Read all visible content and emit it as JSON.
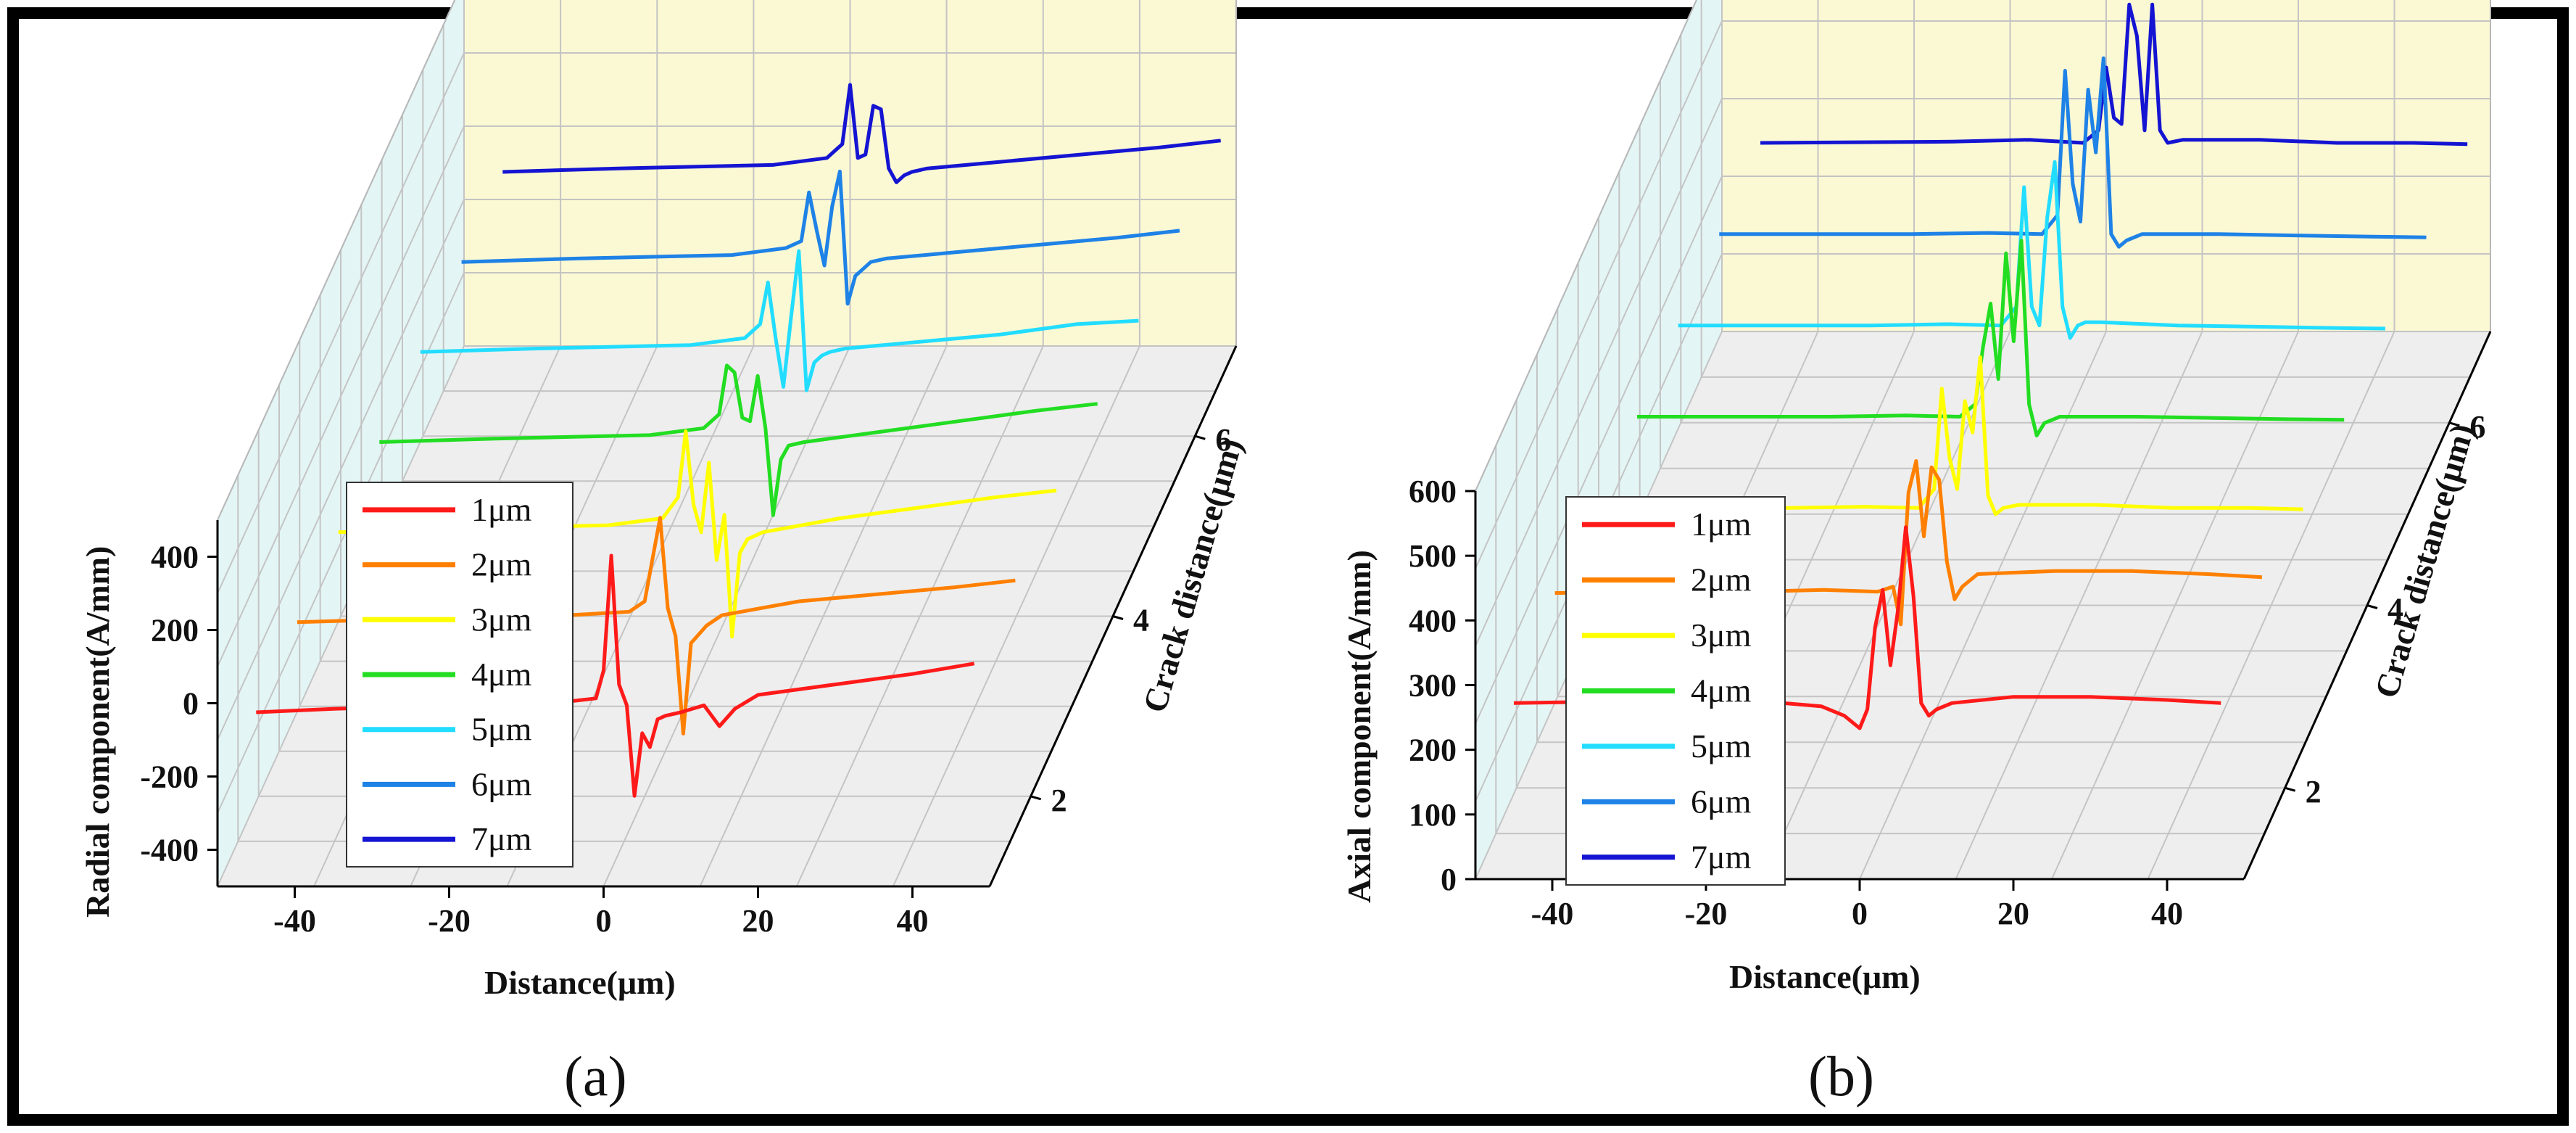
{
  "figure": {
    "captions": [
      "(a)",
      "(b)"
    ]
  },
  "chart_data": [
    {
      "type": "line",
      "panel": "(a)",
      "ylabel": "Radial component(A/mm)",
      "xlabel": "Distance(μm)",
      "zlabel": "Crack distance(μm)",
      "xlim": [
        -50,
        50
      ],
      "ylim": [
        -500,
        500
      ],
      "zlim": [
        1,
        7
      ],
      "x_ticks": [
        "-40",
        "-20",
        "0",
        "20",
        "40"
      ],
      "x_tick_values": [
        -40,
        -20,
        0,
        20,
        40
      ],
      "y_ticks": [
        "400",
        "200",
        "0",
        "-200",
        "-400"
      ],
      "y_tick_values": [
        400,
        200,
        0,
        -200,
        -400
      ],
      "z_ticks": [
        "2",
        "4",
        "6"
      ],
      "z_tick_values": [
        2,
        4,
        6
      ],
      "legend": [
        "1μm",
        "2μm",
        "3μm",
        "4μm",
        "5μm",
        "6μm",
        "7μm"
      ],
      "series": [
        {
          "name": "1μm",
          "color": "#ff1a1a",
          "crack_distance": 1,
          "x": [
            -45,
            -35,
            -20,
            -5,
            -1,
            0,
            1,
            2,
            3,
            4,
            5,
            6,
            7,
            8,
            10,
            13,
            15,
            17,
            20,
            30,
            40,
            48
          ],
          "y": [
            0,
            10,
            20,
            30,
            40,
            120,
            450,
            80,
            20,
            -240,
            -60,
            -100,
            -20,
            -10,
            0,
            20,
            -40,
            10,
            50,
            80,
            110,
            140
          ]
        },
        {
          "name": "2μm",
          "color": "#ff8000",
          "crack_distance": 2,
          "x": [
            -45,
            -30,
            -10,
            -2,
            0,
            1,
            2,
            3,
            4,
            5,
            6,
            8,
            10,
            15,
            20,
            30,
            40,
            48
          ],
          "y": [
            0,
            10,
            20,
            30,
            60,
            180,
            300,
            40,
            -40,
            -320,
            -60,
            -10,
            20,
            40,
            60,
            80,
            100,
            120
          ]
        },
        {
          "name": "3μm",
          "color": "#ffff00",
          "crack_distance": 3,
          "x": [
            -45,
            -30,
            -10,
            -3,
            -1,
            0,
            1,
            2,
            3,
            4,
            5,
            6,
            7,
            8,
            10,
            20,
            30,
            40,
            48
          ],
          "y": [
            0,
            10,
            20,
            40,
            100,
            290,
            80,
            0,
            200,
            -80,
            50,
            -300,
            -60,
            -20,
            0,
            40,
            70,
            100,
            120
          ]
        },
        {
          "name": "4μm",
          "color": "#22dd22",
          "crack_distance": 4,
          "x": [
            -45,
            -30,
            -10,
            -3,
            -1,
            0,
            1,
            2,
            3,
            4,
            5,
            6,
            7,
            8,
            10,
            20,
            30,
            40,
            48
          ],
          "y": [
            0,
            10,
            20,
            40,
            80,
            220,
            200,
            70,
            60,
            190,
            40,
            -210,
            -50,
            -10,
            0,
            30,
            60,
            90,
            110
          ]
        },
        {
          "name": "5μm",
          "color": "#22ddff",
          "crack_distance": 5,
          "x": [
            -45,
            -30,
            -10,
            -3,
            -1,
            0,
            1,
            2,
            3,
            4,
            5,
            6,
            7,
            8,
            10,
            20,
            30,
            40,
            48
          ],
          "y": [
            0,
            10,
            20,
            40,
            80,
            200,
            40,
            -100,
            100,
            290,
            -110,
            -30,
            -10,
            0,
            10,
            30,
            50,
            80,
            90
          ]
        },
        {
          "name": "6μm",
          "color": "#1e82e6",
          "crack_distance": 6,
          "x": [
            -45,
            -30,
            -10,
            -3,
            -1,
            0,
            1,
            2,
            3,
            4,
            5,
            6,
            7,
            8,
            10,
            20,
            30,
            40,
            48
          ],
          "y": [
            0,
            10,
            20,
            40,
            60,
            200,
            90,
            -10,
            160,
            260,
            -120,
            -40,
            -20,
            0,
            10,
            30,
            50,
            70,
            90
          ]
        },
        {
          "name": "7μm",
          "color": "#1414d2",
          "crack_distance": 7,
          "x": [
            -45,
            -30,
            -10,
            -3,
            -1,
            0,
            1,
            2,
            3,
            4,
            5,
            6,
            7,
            8,
            10,
            20,
            30,
            40,
            48
          ],
          "y": [
            0,
            10,
            20,
            40,
            80,
            250,
            40,
            50,
            190,
            180,
            10,
            -30,
            -10,
            0,
            10,
            30,
            50,
            70,
            90
          ]
        }
      ]
    },
    {
      "type": "line",
      "panel": "(b)",
      "ylabel": "Axial component(A/mm)",
      "xlabel": "Distance(μm)",
      "zlabel": "Crack distance(μm)",
      "xlim": [
        -50,
        50
      ],
      "ylim": [
        0,
        600
      ],
      "zlim": [
        1,
        7
      ],
      "x_ticks": [
        "-40",
        "-20",
        "0",
        "20",
        "40"
      ],
      "x_tick_values": [
        -40,
        -20,
        0,
        20,
        40
      ],
      "y_ticks": [
        "600",
        "500",
        "400",
        "300",
        "200",
        "100",
        "0"
      ],
      "y_tick_values": [
        600,
        500,
        400,
        300,
        200,
        100,
        0
      ],
      "z_ticks": [
        "2",
        "4",
        "6"
      ],
      "z_tick_values": [
        2,
        4,
        6
      ],
      "legend": [
        "1μm",
        "2μm",
        "3μm",
        "4μm",
        "5μm",
        "6μm",
        "7μm"
      ],
      "series": [
        {
          "name": "1μm",
          "color": "#ff1a1a",
          "crack_distance": 1,
          "x": [
            -45,
            -20,
            -10,
            -5,
            -2,
            0,
            1,
            2,
            3,
            4,
            5,
            6,
            7,
            8,
            9,
            10,
            12,
            20,
            30,
            40,
            47
          ],
          "y": [
            280,
            285,
            280,
            275,
            260,
            240,
            270,
            400,
            460,
            340,
            430,
            560,
            450,
            280,
            260,
            270,
            280,
            290,
            290,
            285,
            280
          ]
        },
        {
          "name": "2μm",
          "color": "#ff8000",
          "crack_distance": 2,
          "x": [
            -45,
            -20,
            -10,
            -3,
            -1,
            0,
            1,
            2,
            3,
            4,
            5,
            6,
            7,
            8,
            10,
            20,
            30,
            40,
            47
          ],
          "y": [
            310,
            312,
            315,
            312,
            320,
            260,
            470,
            520,
            400,
            510,
            490,
            360,
            300,
            320,
            340,
            345,
            345,
            340,
            335
          ]
        },
        {
          "name": "3μm",
          "color": "#ffff00",
          "crack_distance": 3,
          "x": [
            -45,
            -20,
            -10,
            -3,
            -1,
            0,
            1,
            2,
            3,
            4,
            5,
            6,
            7,
            8,
            10,
            20,
            30,
            40,
            47
          ],
          "y": [
            300,
            300,
            302,
            300,
            330,
            490,
            380,
            330,
            470,
            420,
            540,
            320,
            290,
            300,
            305,
            305,
            300,
            300,
            298
          ]
        },
        {
          "name": "4μm",
          "color": "#22dd22",
          "crack_distance": 4,
          "x": [
            -45,
            -20,
            -10,
            -3,
            -1,
            0,
            1,
            2,
            3,
            4,
            5,
            6,
            7,
            8,
            10,
            20,
            30,
            40,
            47
          ],
          "y": [
            300,
            300,
            302,
            300,
            320,
            410,
            480,
            360,
            560,
            420,
            580,
            320,
            270,
            290,
            300,
            300,
            298,
            296,
            295
          ]
        },
        {
          "name": "5μm",
          "color": "#22ddff",
          "crack_distance": 5,
          "x": [
            -45,
            -20,
            -10,
            -3,
            -1,
            0,
            1,
            2,
            3,
            4,
            5,
            6,
            7,
            8,
            10,
            20,
            30,
            40,
            47
          ],
          "y": [
            300,
            300,
            302,
            300,
            330,
            520,
            330,
            300,
            470,
            560,
            330,
            280,
            300,
            305,
            305,
            300,
            298,
            296,
            295
          ]
        },
        {
          "name": "6μm",
          "color": "#1e82e6",
          "crack_distance": 6,
          "x": [
            -45,
            -20,
            -10,
            -3,
            -1,
            0,
            1,
            2,
            3,
            4,
            5,
            6,
            7,
            8,
            10,
            20,
            30,
            40,
            47
          ],
          "y": [
            300,
            300,
            302,
            300,
            330,
            560,
            380,
            320,
            530,
            430,
            580,
            300,
            280,
            290,
            300,
            300,
            298,
            296,
            295
          ]
        },
        {
          "name": "7μm",
          "color": "#1414d2",
          "crack_distance": 7,
          "x": [
            -45,
            -20,
            -10,
            -3,
            -1,
            0,
            1,
            2,
            3,
            4,
            5,
            6,
            7,
            8,
            10,
            20,
            30,
            40,
            47
          ],
          "y": [
            300,
            302,
            305,
            300,
            320,
            420,
            340,
            330,
            520,
            470,
            320,
            520,
            320,
            300,
            305,
            305,
            300,
            300,
            298
          ]
        }
      ]
    }
  ]
}
